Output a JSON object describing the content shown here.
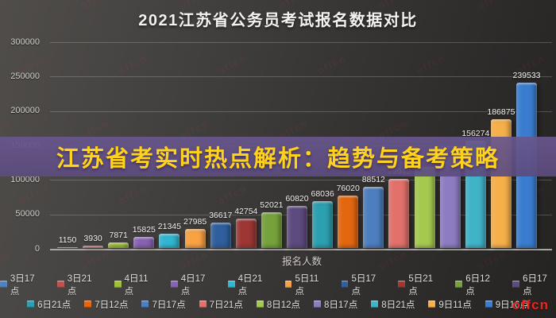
{
  "title": "2021江苏省公务员考试报名数据对比",
  "overlay_banner": {
    "text": "江苏省考实时热点解析：趋势与备考策略",
    "bg_color": "#64538a",
    "text_color": "#ffd21c"
  },
  "watermark": {
    "brand": "offcn",
    "color": "#e8251f"
  },
  "chart_data": {
    "type": "bar",
    "title": "2021江苏省公务员考试报名数据对比",
    "xlabel": "报名人数",
    "ylabel": "",
    "ylim": [
      0,
      300000
    ],
    "yticks": [
      300000,
      250000,
      200000,
      150000,
      100000,
      50000,
      0
    ],
    "ytick_labels": [
      "300000",
      "250000",
      "200000",
      "150000",
      "100000",
      "50000",
      "0"
    ],
    "grid": true,
    "legend_position": "bottom",
    "categories": [
      "3日17点",
      "3日21点",
      "4日11点",
      "4日17点",
      "4日21点",
      "5日11点",
      "5日17点",
      "5日21点",
      "6日12点",
      "6日17点",
      "6日21点",
      "7日12点",
      "7日17点",
      "7日21点",
      "8日12点",
      "8日17点",
      "8日21点",
      "9日11点",
      "9日16点"
    ],
    "series": [
      {
        "name": "报名人数",
        "values": [
          1150,
          3930,
          7871,
          15825,
          21345,
          27985,
          36617,
          42754,
          52021,
          60820,
          68036,
          76020,
          88512,
          99940,
          118000,
          132765,
          156274,
          186875,
          239533
        ]
      }
    ],
    "value_labels": [
      "1150",
      "3930",
      "7871",
      "15825",
      "21345",
      "27985",
      "36617",
      "42754",
      "52021",
      "60820",
      "68036",
      "76020",
      "88512",
      "99940",
      "",
      "132765",
      "156274",
      "186875",
      "239533"
    ],
    "colors": [
      "#4f81bd",
      "#c0504d",
      "#9fc234",
      "#8a62b5",
      "#31b6d1",
      "#f9a243",
      "#2f5f9e",
      "#9c3734",
      "#76a23b",
      "#5d4a7e",
      "#2c9fb0",
      "#e3670e",
      "#4d7ebf",
      "#e2706b",
      "#a5c94f",
      "#8d7cc2",
      "#41b3c9",
      "#f5b04a",
      "#3a7dd0"
    ]
  }
}
